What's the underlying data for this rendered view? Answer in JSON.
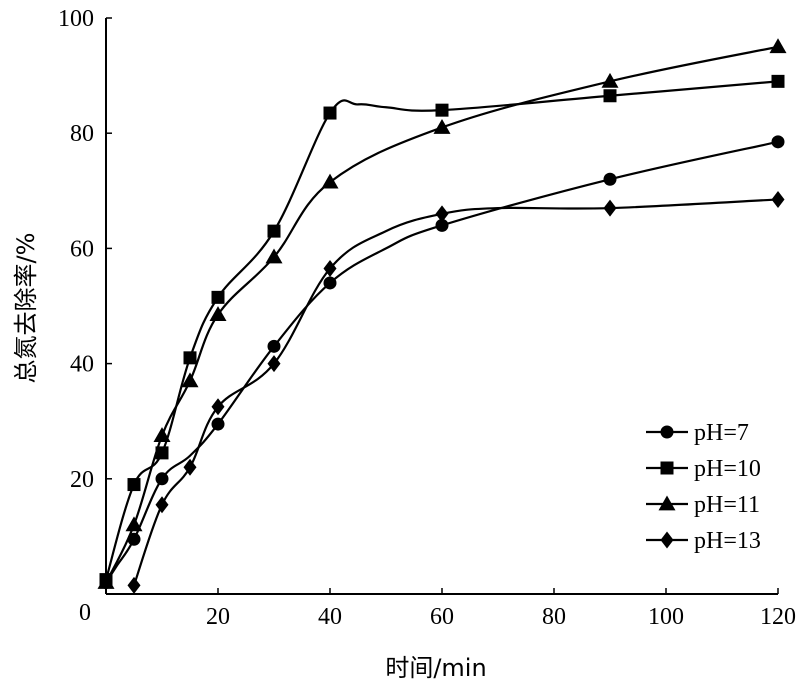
{
  "chart_data": {
    "type": "line",
    "xlabel": "时间/min",
    "ylabel": "总氮去除率/%",
    "xlim": [
      0,
      120
    ],
    "ylim": [
      0,
      100
    ],
    "xticks": [
      20,
      40,
      60,
      80,
      100,
      120
    ],
    "yticks": [
      20,
      40,
      60,
      80,
      100
    ],
    "origin_label": "0",
    "grid": false,
    "legend_position": "bottom-right",
    "series": [
      {
        "name": "pH=7",
        "marker": "circle",
        "x": [
          0,
          5,
          10,
          20,
          30,
          40,
          60,
          90,
          120
        ],
        "y": [
          2,
          9.5,
          20,
          29.5,
          43,
          54,
          64,
          72,
          78.5
        ],
        "curve_x": [
          0,
          2,
          5,
          10,
          15,
          20,
          30,
          40,
          50,
          60,
          90,
          120
        ],
        "curve_y": [
          2,
          5,
          9.5,
          20,
          24,
          29.5,
          43,
          54,
          60,
          64,
          72,
          78.5
        ]
      },
      {
        "name": "pH=10",
        "marker": "square",
        "x": [
          0,
          5,
          10,
          15,
          20,
          30,
          40,
          60,
          90,
          120
        ],
        "y": [
          2.5,
          19,
          24.5,
          41,
          51.5,
          63,
          83.5,
          84,
          86.5,
          89
        ],
        "curve_x": [
          0,
          5,
          10,
          15,
          20,
          30,
          40,
          45,
          50,
          60,
          90,
          120
        ],
        "curve_y": [
          2.5,
          19,
          24.5,
          41,
          51.5,
          63,
          83.5,
          85,
          84.5,
          84,
          86.5,
          89
        ]
      },
      {
        "name": "pH=11",
        "marker": "triangle",
        "x": [
          0,
          5,
          10,
          15,
          20,
          30,
          40,
          60,
          90,
          120
        ],
        "y": [
          2,
          12,
          27.5,
          37,
          48.5,
          58.5,
          71.5,
          81,
          89,
          95
        ],
        "curve_x": [
          0,
          5,
          10,
          15,
          20,
          30,
          40,
          60,
          90,
          120
        ],
        "curve_y": [
          2,
          12,
          27.5,
          37,
          48.5,
          58.5,
          71.5,
          81,
          89,
          95
        ]
      },
      {
        "name": "pH=13",
        "marker": "diamond",
        "x": [
          5,
          10,
          15,
          20,
          30,
          40,
          60,
          90,
          120
        ],
        "y": [
          1.5,
          15.5,
          22,
          32.5,
          40,
          56.5,
          66,
          67,
          68.5
        ],
        "curve_x": [
          5,
          10,
          15,
          20,
          30,
          40,
          50,
          60,
          70,
          90,
          120
        ],
        "curve_y": [
          1.5,
          15.5,
          22,
          32.5,
          40,
          56.5,
          63,
          66,
          67,
          67,
          68.5
        ]
      }
    ]
  }
}
